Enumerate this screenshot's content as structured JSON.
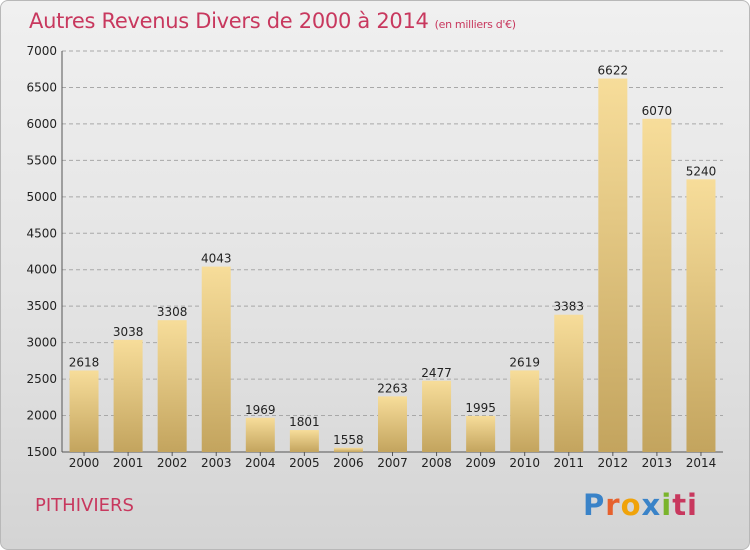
{
  "page": {
    "title": "Autres Revenus Divers de 2000 à 2014",
    "unit": "(en milliers d'€)",
    "city": "PITHIVIERS",
    "brand_letters": [
      "P",
      "r",
      "o",
      "x",
      "i",
      "ti"
    ]
  },
  "chart_data": {
    "type": "bar",
    "title": "Autres Revenus Divers de 2000 à 2014",
    "subtitle": "(en milliers d'€)",
    "categories": [
      "2000",
      "2001",
      "2002",
      "2003",
      "2004",
      "2005",
      "2006",
      "2007",
      "2008",
      "2009",
      "2010",
      "2011",
      "2012",
      "2013",
      "2014"
    ],
    "values": [
      2618,
      3038,
      3308,
      4043,
      1969,
      1801,
      1558,
      2263,
      2477,
      1995,
      2619,
      3383,
      6622,
      6070,
      5240
    ],
    "ylim": [
      1500,
      7000
    ],
    "yticks": [
      1500,
      2000,
      2500,
      3000,
      3500,
      4000,
      4500,
      5000,
      5500,
      6000,
      6500,
      7000
    ],
    "grid": true,
    "bar_color_top": "#f7dd9a",
    "bar_color_bottom": "#c3a45e"
  }
}
